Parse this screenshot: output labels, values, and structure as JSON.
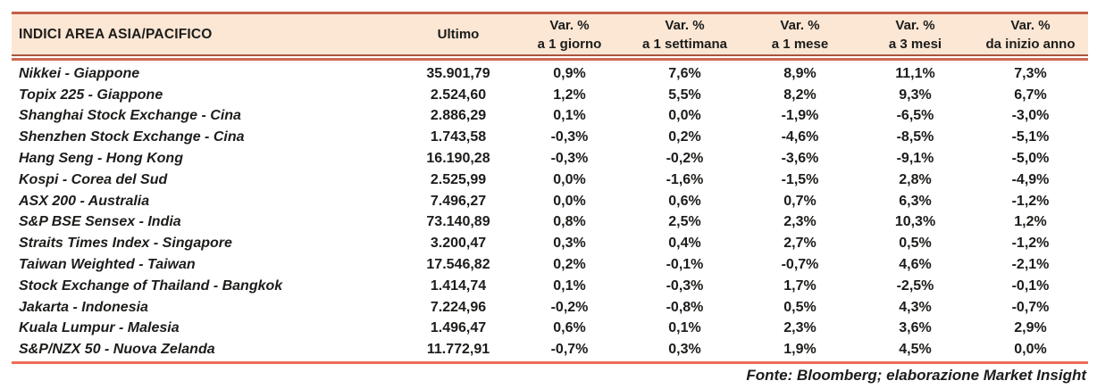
{
  "header": {
    "title": "INDICI AREA ASIA/PACIFICO",
    "ultimo_label": "Ultimo",
    "var_label": "Var. %",
    "period_labels": [
      "a 1 giorno",
      "a 1 settimana",
      "a 1 mese",
      "a 3 mesi",
      "da inizio anno"
    ]
  },
  "chart_data": {
    "type": "table",
    "title": "INDICI AREA ASIA/PACIFICO",
    "columns": [
      "INDICI AREA ASIA/PACIFICO",
      "Ultimo",
      "Var. % a 1 giorno",
      "Var. % a 1 settimana",
      "Var. % a 1 mese",
      "Var. % a 3 mesi",
      "Var. % da inizio anno"
    ],
    "rows": [
      [
        "Nikkei - Giappone",
        "35.901,79",
        "0,9%",
        "7,6%",
        "8,9%",
        "11,1%",
        "7,3%"
      ],
      [
        "Topix 225 - Giappone",
        "2.524,60",
        "1,2%",
        "5,5%",
        "8,2%",
        "9,3%",
        "6,7%"
      ],
      [
        "Shanghai Stock Exchange - Cina",
        "2.886,29",
        "0,1%",
        "0,0%",
        "-1,9%",
        "-6,5%",
        "-3,0%"
      ],
      [
        "Shenzhen Stock Exchange - Cina",
        "1.743,58",
        "-0,3%",
        "0,2%",
        "-4,6%",
        "-8,5%",
        "-5,1%"
      ],
      [
        "Hang Seng - Hong Kong",
        "16.190,28",
        "-0,3%",
        "-0,2%",
        "-3,6%",
        "-9,1%",
        "-5,0%"
      ],
      [
        "Kospi - Corea del Sud",
        "2.525,99",
        "0,0%",
        "-1,6%",
        "-1,5%",
        "2,8%",
        "-4,9%"
      ],
      [
        "ASX 200 - Australia",
        "7.496,27",
        "0,0%",
        "0,6%",
        "0,7%",
        "6,3%",
        "-1,2%"
      ],
      [
        "S&P BSE Sensex - India",
        "73.140,89",
        "0,8%",
        "2,5%",
        "2,3%",
        "10,3%",
        "1,2%"
      ],
      [
        "Straits Times Index - Singapore",
        "3.200,47",
        "0,3%",
        "0,4%",
        "2,7%",
        "0,5%",
        "-1,2%"
      ],
      [
        "Taiwan Weighted - Taiwan",
        "17.546,82",
        "0,2%",
        "-0,1%",
        "-0,7%",
        "4,6%",
        "-2,1%"
      ],
      [
        "Stock Exchange of Thailand - Bangkok",
        "1.414,74",
        "0,1%",
        "-0,3%",
        "1,7%",
        "-2,5%",
        "-0,1%"
      ],
      [
        "Jakarta - Indonesia",
        "7.224,96",
        "-0,2%",
        "-0,8%",
        "0,5%",
        "4,3%",
        "-0,7%"
      ],
      [
        "Kuala Lumpur - Malesia",
        "1.496,47",
        "0,6%",
        "0,1%",
        "2,3%",
        "3,6%",
        "2,9%"
      ],
      [
        "S&P/NZX 50 - Nuova Zelanda",
        "11.772,91",
        "-0,7%",
        "0,3%",
        "1,9%",
        "4,5%",
        "0,0%"
      ]
    ],
    "source": "Fonte: Bloomberg; elaborazione Market Insight"
  },
  "footer": {
    "source": "Fonte: Bloomberg; elaborazione Market Insight"
  },
  "colors": {
    "header_bg": "#fce6d4",
    "border_dark": "#c2604a",
    "border_darker": "#a9543f",
    "divider": "#cc6950",
    "rule": "#ee6c55",
    "text": "#1c1c1a"
  }
}
